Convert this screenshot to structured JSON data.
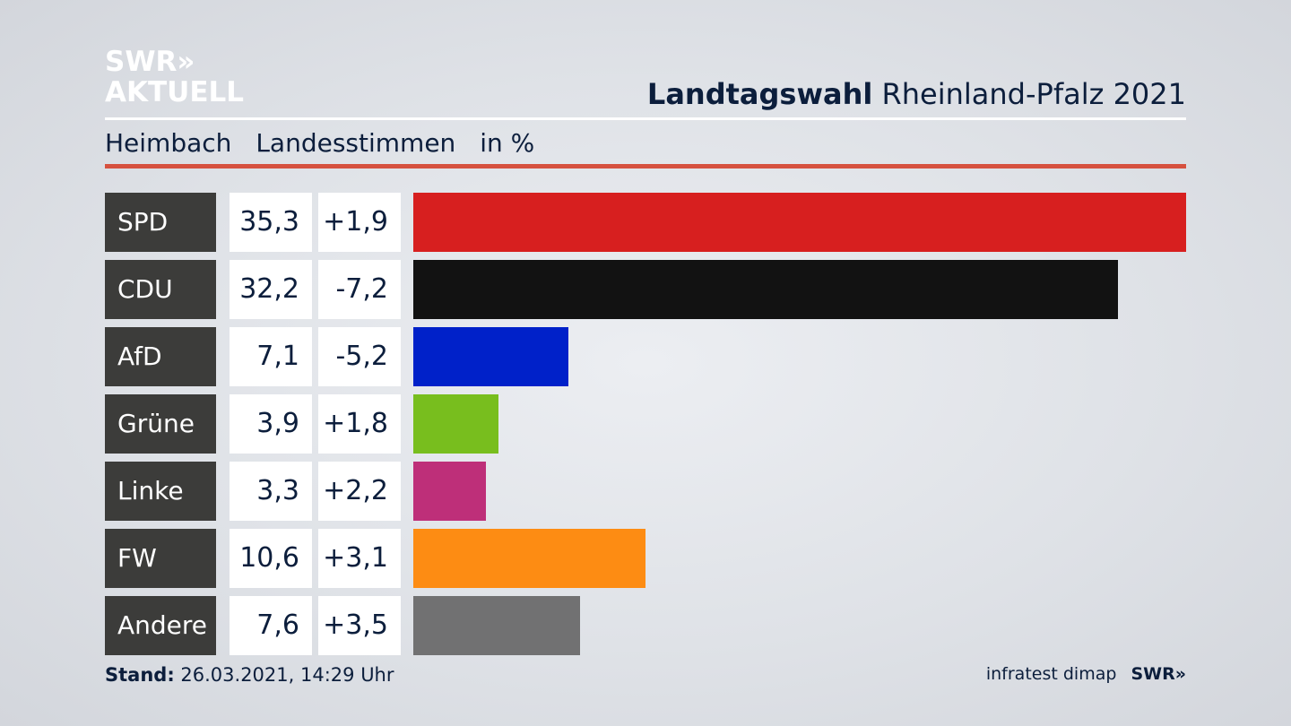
{
  "logo": {
    "line1": "SWR»",
    "line2": "AKTUELL"
  },
  "header": {
    "title_bold": "Landtagswahl",
    "title_rest": "Rheinland-Pfalz 2021"
  },
  "subheader": {
    "place": "Heimbach",
    "type": "Landesstimmen",
    "unit": "in %"
  },
  "footer": {
    "stand_label": "Stand:",
    "stand_value": "26.03.2021, 14:29 Uhr",
    "source": "infratest dimap",
    "brand": "SWR»"
  },
  "chart_data": {
    "type": "bar",
    "orientation": "horizontal",
    "categories": [
      "SPD",
      "CDU",
      "AfD",
      "Grüne",
      "Linke",
      "FW",
      "Andere"
    ],
    "series": [
      {
        "values": [
          35.3,
          32.2,
          7.1,
          3.9,
          3.3,
          10.6,
          7.6
        ]
      }
    ],
    "value_labels": [
      "35,3",
      "32,2",
      "7,1",
      "3,9",
      "3,3",
      "10,6",
      "7,6"
    ],
    "change_labels": [
      "+1,9",
      "-7,2",
      "-5,2",
      "+1,8",
      "+2,2",
      "+3,1",
      "+3,5"
    ],
    "changes": [
      1.9,
      -7.2,
      -5.2,
      1.8,
      2.2,
      3.1,
      3.5
    ],
    "colors": [
      "#d71f1f",
      "#121212",
      "#0021c9",
      "#78be1e",
      "#be2f79",
      "#fd8c13",
      "#717172"
    ],
    "xlim": [
      0,
      35.3
    ]
  }
}
